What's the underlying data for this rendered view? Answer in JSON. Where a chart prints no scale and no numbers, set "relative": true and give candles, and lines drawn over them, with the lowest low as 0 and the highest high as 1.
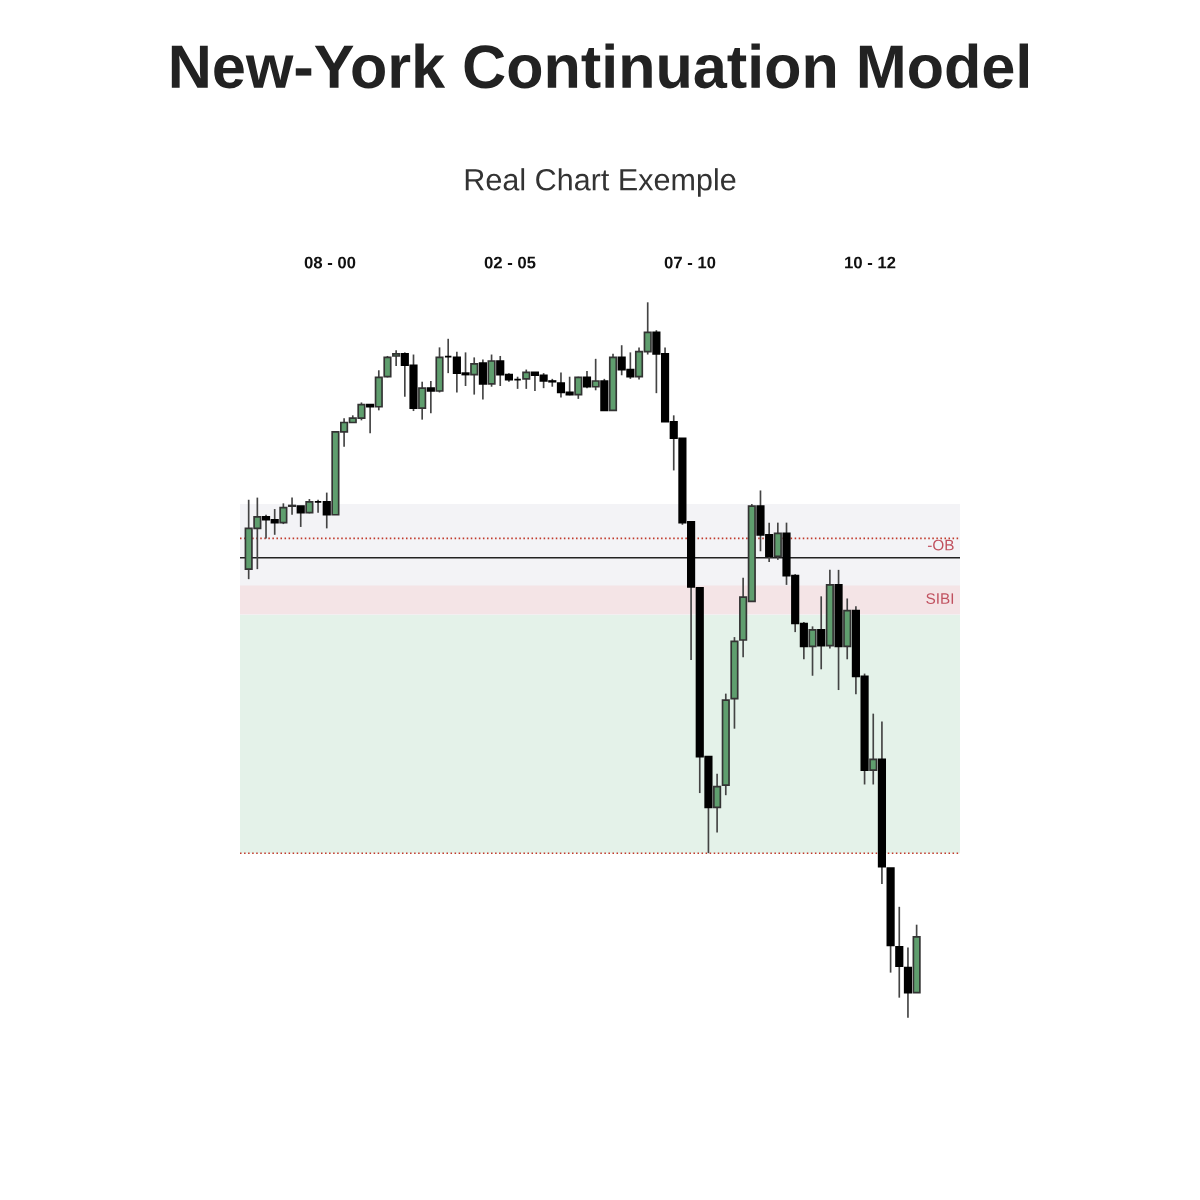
{
  "chart_data": {
    "type": "candlestick",
    "title": "New-York Continuation Model",
    "subtitle": "Real Chart Exemple",
    "relative": true,
    "annotations": [
      "08 - 00",
      "02 - 05",
      "07 - 10",
      "10 - 12"
    ],
    "categories": [
      null,
      null,
      null,
      null,
      null,
      null,
      null,
      null,
      null,
      null,
      null,
      null,
      null,
      null,
      null,
      null,
      null,
      null,
      null,
      null,
      null,
      null,
      null,
      null,
      null,
      null,
      null,
      null,
      null,
      null,
      null,
      null,
      null,
      null,
      null,
      null,
      null,
      null,
      null,
      null,
      null,
      null,
      null,
      null,
      null,
      null,
      null,
      null,
      null,
      null,
      null,
      null,
      null,
      null,
      null,
      null,
      null,
      null,
      null,
      null,
      null,
      null,
      null,
      null,
      null,
      null,
      null,
      null,
      null,
      null,
      null,
      null,
      null,
      null,
      null,
      null,
      null,
      null
    ],
    "ohlc": [
      [
        0.627,
        0.724,
        0.613,
        0.684
      ],
      [
        0.684,
        0.727,
        0.627,
        0.7
      ],
      [
        0.7,
        0.703,
        0.67,
        0.696
      ],
      [
        0.696,
        0.711,
        0.675,
        0.692
      ],
      [
        0.692,
        0.719,
        0.69,
        0.713
      ],
      [
        0.715,
        0.727,
        0.703,
        0.716
      ],
      [
        0.715,
        0.715,
        0.686,
        0.706
      ],
      [
        0.706,
        0.725,
        0.705,
        0.721
      ],
      [
        0.721,
        0.724,
        0.706,
        0.721
      ],
      [
        0.721,
        0.734,
        0.684,
        0.703
      ],
      [
        0.703,
        0.819,
        0.703,
        0.819
      ],
      [
        0.819,
        0.838,
        0.798,
        0.832
      ],
      [
        0.832,
        0.842,
        0.832,
        0.838
      ],
      [
        0.838,
        0.86,
        0.835,
        0.857
      ],
      [
        0.857,
        0.857,
        0.817,
        0.854
      ],
      [
        0.854,
        0.905,
        0.849,
        0.895
      ],
      [
        0.896,
        0.925,
        0.895,
        0.923
      ],
      [
        0.925,
        0.933,
        0.911,
        0.928
      ],
      [
        0.928,
        0.93,
        0.868,
        0.912
      ],
      [
        0.912,
        0.927,
        0.848,
        0.852
      ],
      [
        0.852,
        0.889,
        0.836,
        0.88
      ],
      [
        0.88,
        0.89,
        0.845,
        0.876
      ],
      [
        0.876,
        0.937,
        0.874,
        0.923
      ],
      [
        0.924,
        0.949,
        0.901,
        0.924
      ],
      [
        0.923,
        0.931,
        0.874,
        0.901
      ],
      [
        0.901,
        0.93,
        0.883,
        0.899
      ],
      [
        0.899,
        0.923,
        0.871,
        0.914
      ],
      [
        0.915,
        0.92,
        0.864,
        0.886
      ],
      [
        0.886,
        0.927,
        0.882,
        0.918
      ],
      [
        0.918,
        0.925,
        0.883,
        0.899
      ],
      [
        0.899,
        0.901,
        0.889,
        0.892
      ],
      [
        0.892,
        0.896,
        0.879,
        0.892
      ],
      [
        0.893,
        0.906,
        0.879,
        0.902
      ],
      [
        0.902,
        0.902,
        0.876,
        0.898
      ],
      [
        0.898,
        0.901,
        0.88,
        0.89
      ],
      [
        0.89,
        0.893,
        0.882,
        0.889
      ],
      [
        0.887,
        0.902,
        0.867,
        0.874
      ],
      [
        0.874,
        0.896,
        0.87,
        0.871
      ],
      [
        0.871,
        0.896,
        0.865,
        0.895
      ],
      [
        0.895,
        0.904,
        0.88,
        0.882
      ],
      [
        0.882,
        0.921,
        0.877,
        0.89
      ],
      [
        0.89,
        0.893,
        0.849,
        0.849
      ],
      [
        0.849,
        0.928,
        0.849,
        0.923
      ],
      [
        0.923,
        0.94,
        0.898,
        0.906
      ],
      [
        0.906,
        0.93,
        0.893,
        0.896
      ],
      [
        0.896,
        0.937,
        0.892,
        0.931
      ],
      [
        0.931,
        1.0,
        0.927,
        0.958
      ],
      [
        0.958,
        0.961,
        0.873,
        0.928
      ],
      [
        0.928,
        0.937,
        0.833,
        0.833
      ],
      [
        0.833,
        0.842,
        0.765,
        0.81
      ],
      [
        0.81,
        0.81,
        0.689,
        0.692
      ],
      [
        0.693,
        0.693,
        0.5,
        0.602
      ],
      [
        0.601,
        0.601,
        0.314,
        0.365
      ],
      [
        0.365,
        0.365,
        0.23,
        0.294
      ],
      [
        0.294,
        0.341,
        0.259,
        0.323
      ],
      [
        0.325,
        0.453,
        0.311,
        0.444
      ],
      [
        0.446,
        0.532,
        0.404,
        0.526
      ],
      [
        0.528,
        0.615,
        0.504,
        0.588
      ],
      [
        0.582,
        0.718,
        0.582,
        0.715
      ],
      [
        0.715,
        0.737,
        0.652,
        0.675
      ],
      [
        0.675,
        0.692,
        0.637,
        0.645
      ],
      [
        0.645,
        0.692,
        0.64,
        0.677
      ],
      [
        0.677,
        0.692,
        0.605,
        0.618
      ],
      [
        0.618,
        0.62,
        0.539,
        0.551
      ],
      [
        0.551,
        0.553,
        0.501,
        0.519
      ],
      [
        0.519,
        0.547,
        0.478,
        0.542
      ],
      [
        0.542,
        0.589,
        0.487,
        0.52
      ],
      [
        0.52,
        0.626,
        0.516,
        0.605
      ],
      [
        0.605,
        0.626,
        0.458,
        0.519
      ],
      [
        0.519,
        0.586,
        0.501,
        0.569
      ],
      [
        0.569,
        0.575,
        0.452,
        0.477
      ],
      [
        0.477,
        0.481,
        0.326,
        0.346
      ],
      [
        0.346,
        0.425,
        0.326,
        0.361
      ],
      [
        0.361,
        0.414,
        0.187,
        0.211
      ],
      [
        0.209,
        0.209,
        0.063,
        0.101
      ],
      [
        0.099,
        0.155,
        0.028,
        0.072
      ],
      [
        0.07,
        0.098,
        0.0,
        0.035
      ],
      [
        0.035,
        0.13,
        0.035,
        0.113
      ]
    ],
    "ref_lines": [
      {
        "axis": "y",
        "value": 0.67,
        "label": null,
        "color": "#c0392b",
        "line_style": "dotted"
      },
      {
        "axis": "y",
        "value": 0.23,
        "label": null,
        "color": "#c0392b",
        "line_style": "dotted"
      },
      {
        "axis": "y",
        "value": 0.643,
        "label": "-OB",
        "color": "#222222",
        "line_style": "solid"
      }
    ],
    "bands": [
      {
        "axis": "y",
        "from": 0.563,
        "to": 0.718,
        "label": null,
        "color": "#eeeef2"
      },
      {
        "axis": "y",
        "from": 0.23,
        "to": 0.563,
        "label": null,
        "color": "#d9ede0"
      },
      {
        "axis": "y",
        "from": 0.564,
        "to": 0.604,
        "label": "SIBI",
        "color": "#f3dde0"
      }
    ]
  }
}
